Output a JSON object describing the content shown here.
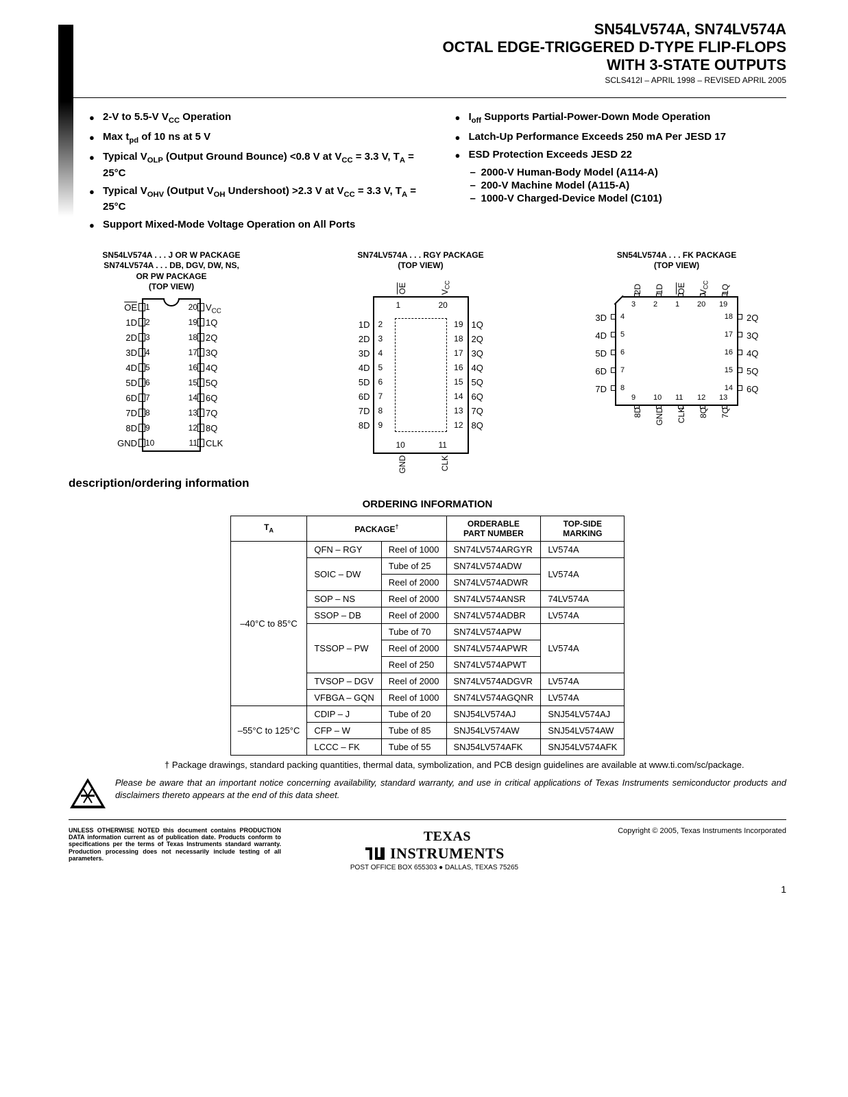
{
  "header": {
    "line1": "SN54LV574A, SN74LV574A",
    "line2": "OCTAL EDGE-TRIGGERED D-TYPE FLIP-FLOPS",
    "line3": "WITH 3-STATE OUTPUTS",
    "docnum": "SCLS412I – APRIL 1998 – REVISED APRIL 2005"
  },
  "features_left": [
    "2-V to 5.5-V V<sub>CC</sub> Operation",
    "Max t<sub>pd</sub> of 10 ns at 5 V",
    "Typical V<sub>OLP</sub> (Output Ground Bounce) <0.8 V at V<sub>CC</sub> = 3.3 V, T<sub>A</sub> = 25°C",
    "Typical V<sub>OHV</sub> (Output V<sub>OH</sub> Undershoot) >2.3 V at V<sub>CC</sub> = 3.3 V, T<sub>A</sub> = 25°C",
    "Support Mixed-Mode Voltage Operation on All Ports"
  ],
  "features_right": [
    "I<sub>off</sub> Supports Partial-Power-Down Mode Operation",
    "Latch-Up Performance Exceeds 250 mA Per JESD 17",
    "ESD Protection Exceeds JESD 22"
  ],
  "esd_sub": [
    "2000-V Human-Body Model (A114-A)",
    "200-V Machine Model (A115-A)",
    "1000-V Charged-Device Model (C101)"
  ],
  "pkg1": {
    "title": "SN54LV574A . . . J OR W PACKAGE\nSN74LV574A . . . DB, DGV, DW, NS,\nOR PW PACKAGE\n(TOP VIEW)",
    "left": [
      "OE",
      "1D",
      "2D",
      "3D",
      "4D",
      "5D",
      "6D",
      "7D",
      "8D",
      "GND"
    ],
    "right": [
      "V",
      "1Q",
      "2Q",
      "3Q",
      "4Q",
      "5Q",
      "6Q",
      "7Q",
      "8Q",
      "CLK"
    ],
    "right0_sub": "CC",
    "nums_l": [
      1,
      2,
      3,
      4,
      5,
      6,
      7,
      8,
      9,
      10
    ],
    "nums_r": [
      20,
      19,
      18,
      17,
      16,
      15,
      14,
      13,
      12,
      11
    ]
  },
  "pkg2": {
    "title": "SN74LV574A . . . RGY PACKAGE\n(TOP VIEW)",
    "top": [
      "OE",
      "V"
    ],
    "top1_sub": "CC",
    "topnums": [
      1,
      20
    ],
    "left": [
      "1D",
      "2D",
      "3D",
      "4D",
      "5D",
      "6D",
      "7D",
      "8D"
    ],
    "leftnums": [
      2,
      3,
      4,
      5,
      6,
      7,
      8,
      9
    ],
    "right": [
      "1Q",
      "2Q",
      "3Q",
      "4Q",
      "5Q",
      "6Q",
      "7Q",
      "8Q"
    ],
    "rightnums": [
      19,
      18,
      17,
      16,
      15,
      14,
      13,
      12
    ],
    "bot": [
      "GND",
      "CLK"
    ],
    "botnums": [
      10,
      11
    ]
  },
  "pkg3": {
    "title": "SN54LV574A . . . FK PACKAGE\n(TOP VIEW)",
    "top": [
      "2D",
      "1D",
      "OE",
      "V",
      "1Q"
    ],
    "top3_sub": "CC",
    "topnums": [
      3,
      2,
      1,
      20,
      19
    ],
    "left": [
      "3D",
      "4D",
      "5D",
      "6D",
      "7D"
    ],
    "leftnums": [
      4,
      5,
      6,
      7,
      8
    ],
    "right": [
      "2Q",
      "3Q",
      "4Q",
      "5Q",
      "6Q"
    ],
    "rightnums": [
      18,
      17,
      16,
      15,
      14
    ],
    "bot": [
      "8D",
      "GND",
      "CLK",
      "8Q",
      "7Q"
    ],
    "botnums": [
      9,
      10,
      11,
      12,
      13
    ]
  },
  "section_title": "description/ordering information",
  "table_title": "ORDERING INFORMATION",
  "table_headers": [
    "T",
    "PACKAGE",
    "",
    "ORDERABLE PART NUMBER",
    "TOP-SIDE MARKING"
  ],
  "ta_sub": "A",
  "pkg_dagger": "†",
  "rows": [
    {
      "ta": "–40°C to 85°C",
      "ta_rs": 10,
      "pkg": "QFN – RGY",
      "pkg_rs": 1,
      "ship": "Reel of 1000",
      "pn": "SN74LV574ARGYR",
      "mark": "LV574A",
      "mark_rs": 1
    },
    {
      "pkg": "SOIC – DW",
      "pkg_rs": 2,
      "ship": "Tube of 25",
      "pn": "SN74LV574ADW",
      "mark": "LV574A",
      "mark_rs": 2
    },
    {
      "ship": "Reel of 2000",
      "pn": "SN74LV574ADWR"
    },
    {
      "pkg": "SOP – NS",
      "pkg_rs": 1,
      "ship": "Reel of 2000",
      "pn": "SN74LV574ANSR",
      "mark": "74LV574A",
      "mark_rs": 1
    },
    {
      "pkg": "SSOP – DB",
      "pkg_rs": 1,
      "ship": "Reel of 2000",
      "pn": "SN74LV574ADBR",
      "mark": "LV574A",
      "mark_rs": 1
    },
    {
      "pkg": "TSSOP – PW",
      "pkg_rs": 3,
      "ship": "Tube of 70",
      "pn": "SN74LV574APW",
      "mark": "LV574A",
      "mark_rs": 3
    },
    {
      "ship": "Reel of 2000",
      "pn": "SN74LV574APWR"
    },
    {
      "ship": "Reel of 250",
      "pn": "SN74LV574APWT"
    },
    {
      "pkg": "TVSOP – DGV",
      "pkg_rs": 1,
      "ship": "Reel of 2000",
      "pn": "SN74LV574ADGVR",
      "mark": "LV574A",
      "mark_rs": 1
    },
    {
      "pkg": "VFBGA – GQN",
      "pkg_rs": 1,
      "ship": "Reel of 1000",
      "pn": "SN74LV574AGQNR",
      "mark": "LV574A",
      "mark_rs": 1
    },
    {
      "ta": "–55°C to 125°C",
      "ta_rs": 3,
      "pkg": "CDIP – J",
      "pkg_rs": 1,
      "ship": "Tube of 20",
      "pn": "SNJ54LV574AJ",
      "mark": "SNJ54LV574AJ",
      "mark_rs": 1
    },
    {
      "pkg": "CFP – W",
      "pkg_rs": 1,
      "ship": "Tube of 85",
      "pn": "SNJ54LV574AW",
      "mark": "SNJ54LV574AW",
      "mark_rs": 1
    },
    {
      "pkg": "LCCC – FK",
      "pkg_rs": 1,
      "ship": "Tube of 55",
      "pn": "SNJ54LV574AFK",
      "mark": "SNJ54LV574AFK",
      "mark_rs": 1
    }
  ],
  "footnote": "† Package drawings, standard packing quantities, thermal data, symbolization, and PCB design guidelines are available at www.ti.com/sc/package.",
  "notice": "Please be aware that an important notice concerning availability, standard warranty, and use in critical applications of Texas Instruments semiconductor products and disclaimers thereto appears at the end of this data sheet.",
  "disclaimer": "UNLESS OTHERWISE NOTED this document contains PRODUCTION DATA information current as of publication date. Products conform to specifications per the terms of Texas Instruments standard warranty. Production processing does not necessarily include testing of all parameters.",
  "copyright": "Copyright © 2005, Texas Instruments Incorporated",
  "ti_name": "TEXAS INSTRUMENTS",
  "ti_addr": "POST OFFICE BOX 655303 ● DALLAS, TEXAS 75265",
  "pagenum": "1"
}
